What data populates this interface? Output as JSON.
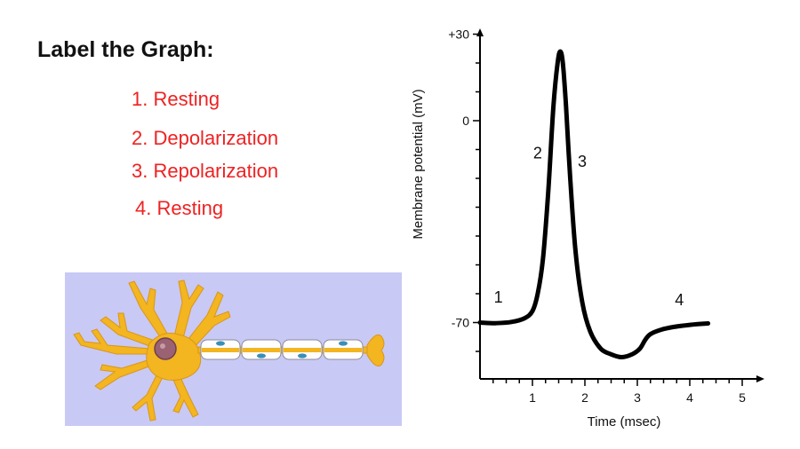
{
  "heading": "Label the Graph:",
  "labels": [
    "1. Resting",
    "2. Depolarization",
    "3. Repolarization",
    "4. Resting"
  ],
  "colors": {
    "label_text": "#ee2222",
    "panel_bg": "#c9c9f5",
    "neuron_fill": "#f3b520",
    "nucleus": "#9a6272",
    "myelin": "#ffffff",
    "schwann_nucleus": "#3a8fb7",
    "trace": "#000000"
  },
  "chart_data": {
    "type": "line",
    "title": "",
    "xlabel": "Time (msec)",
    "ylabel": "Membrane potential (mV)",
    "xlim": [
      0,
      5.4
    ],
    "ylim": [
      -90,
      35
    ],
    "x_ticks": [
      1,
      2,
      3,
      4,
      5
    ],
    "x_tick_labels": [
      "1",
      "2",
      "3",
      "4",
      "5"
    ],
    "y_ticks": [
      30,
      0,
      -70
    ],
    "y_tick_labels": [
      "+30",
      "0",
      "-70"
    ],
    "grid": false,
    "series": [
      {
        "x": [
          0.0,
          0.3,
          0.6,
          0.85,
          1.0,
          1.1,
          1.2,
          1.3,
          1.4,
          1.48,
          1.53,
          1.58,
          1.64,
          1.72,
          1.82,
          1.95,
          2.1,
          2.3,
          2.5,
          2.7,
          2.9,
          3.05,
          3.15,
          3.25,
          3.45,
          3.7,
          4.0,
          4.35
        ],
        "y": [
          -70.0,
          -70.2,
          -69.8,
          -68.5,
          -66.0,
          -60.0,
          -48.0,
          -25.0,
          5.0,
          20.0,
          24.0,
          20.0,
          5.0,
          -20.0,
          -45.0,
          -63.0,
          -73.0,
          -79.0,
          -81.0,
          -82.0,
          -81.0,
          -79.0,
          -76.0,
          -74.0,
          -72.5,
          -71.5,
          -70.8,
          -70.3
        ]
      }
    ],
    "annotations": [
      {
        "text": "1",
        "x": 0.35,
        "y": -63
      },
      {
        "text": "2",
        "x": 1.1,
        "y": -13
      },
      {
        "text": "3",
        "x": 1.95,
        "y": -16
      },
      {
        "text": "4",
        "x": 3.8,
        "y": -64
      }
    ]
  }
}
